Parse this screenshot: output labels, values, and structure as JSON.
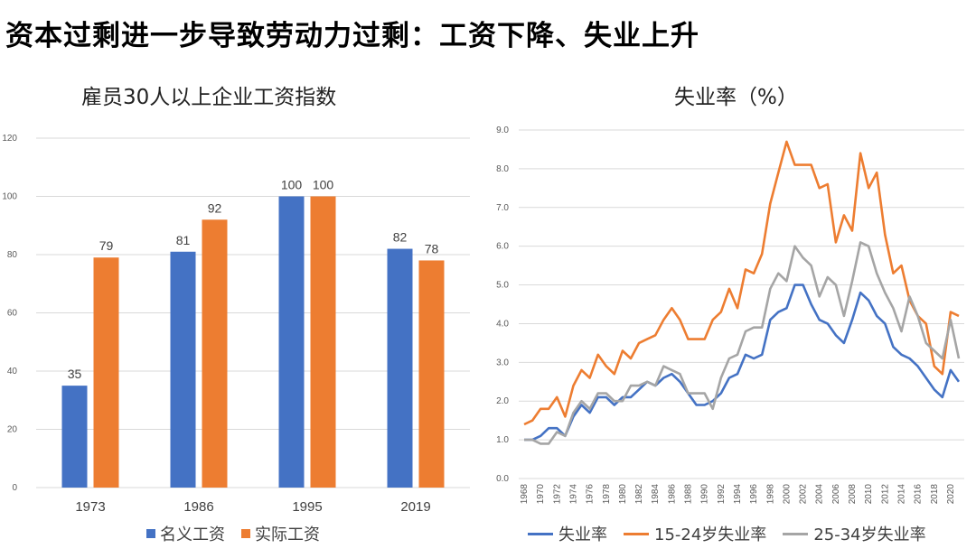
{
  "headline": "资本过剩进一步导致劳动力过剩：工资下降、失业上升",
  "chart_data": [
    {
      "type": "bar",
      "title": "雇员30人以上企业工资指数",
      "categories": [
        "1973",
        "1986",
        "1995",
        "2019"
      ],
      "series": [
        {
          "name": "名义工资",
          "color": "#4472C4",
          "values": [
            35,
            81,
            100,
            82
          ]
        },
        {
          "name": "实际工资",
          "color": "#ED7D31",
          "values": [
            79,
            92,
            100,
            78
          ]
        }
      ],
      "ylim": [
        0,
        120
      ],
      "yticks": [
        "0",
        "20",
        "40",
        "60",
        "80",
        "100",
        "120"
      ],
      "grid": true,
      "legend": "bottom"
    },
    {
      "type": "line",
      "title": "失业率（%）",
      "x": [
        1968,
        1969,
        1970,
        1971,
        1972,
        1973,
        1974,
        1975,
        1976,
        1977,
        1978,
        1979,
        1980,
        1981,
        1982,
        1983,
        1984,
        1985,
        1986,
        1987,
        1988,
        1989,
        1990,
        1991,
        1992,
        1993,
        1994,
        1995,
        1996,
        1997,
        1998,
        1999,
        2000,
        2001,
        2002,
        2003,
        2004,
        2005,
        2006,
        2007,
        2008,
        2009,
        2010,
        2011,
        2012,
        2013,
        2014,
        2015,
        2016,
        2017,
        2018,
        2019,
        2020,
        2021
      ],
      "xticks": [
        "1968",
        "1970",
        "1972",
        "1974",
        "1976",
        "1978",
        "1980",
        "1982",
        "1984",
        "1986",
        "1988",
        "1990",
        "1992",
        "1994",
        "1996",
        "1998",
        "2000",
        "2002",
        "2004",
        "2006",
        "2008",
        "2010",
        "2012",
        "2014",
        "2016",
        "2018",
        "2020"
      ],
      "series": [
        {
          "name": "失业率",
          "color": "#4472C4",
          "values": [
            1.0,
            1.0,
            1.1,
            1.3,
            1.3,
            1.1,
            1.6,
            1.9,
            1.7,
            2.1,
            2.1,
            1.9,
            2.1,
            2.1,
            2.3,
            2.5,
            2.4,
            2.6,
            2.7,
            2.5,
            2.2,
            1.9,
            1.9,
            2.0,
            2.2,
            2.6,
            2.7,
            3.2,
            3.1,
            3.2,
            4.1,
            4.3,
            4.4,
            5.0,
            5.0,
            4.5,
            4.1,
            4.0,
            3.7,
            3.5,
            4.1,
            4.8,
            4.6,
            4.2,
            4.0,
            3.4,
            3.2,
            3.1,
            2.9,
            2.6,
            2.3,
            2.1,
            2.8,
            2.5
          ]
        },
        {
          "name": "15-24岁失业率",
          "color": "#ED7D31",
          "values": [
            1.4,
            1.5,
            1.8,
            1.8,
            2.1,
            1.6,
            2.4,
            2.8,
            2.6,
            3.2,
            2.9,
            2.7,
            3.3,
            3.1,
            3.5,
            3.6,
            3.7,
            4.1,
            4.4,
            4.1,
            3.6,
            3.6,
            3.6,
            4.1,
            4.3,
            4.9,
            4.4,
            5.4,
            5.3,
            5.8,
            7.1,
            7.9,
            8.7,
            8.1,
            8.1,
            8.1,
            7.5,
            7.6,
            6.1,
            6.8,
            6.4,
            8.4,
            7.5,
            7.9,
            6.3,
            5.3,
            5.5,
            4.6,
            4.2,
            4.0,
            2.9,
            2.7,
            4.3,
            4.2
          ]
        },
        {
          "name": "25-34岁失业率",
          "color": "#A5A5A5",
          "values": [
            1.0,
            1.0,
            0.9,
            0.9,
            1.2,
            1.1,
            1.7,
            2.0,
            1.8,
            2.2,
            2.2,
            2.0,
            2.0,
            2.4,
            2.4,
            2.5,
            2.4,
            2.9,
            2.8,
            2.7,
            2.2,
            2.2,
            2.2,
            1.8,
            2.6,
            3.1,
            3.2,
            3.8,
            3.9,
            3.9,
            4.9,
            5.3,
            5.1,
            6.0,
            5.7,
            5.5,
            4.7,
            5.2,
            5.0,
            4.2,
            5.1,
            6.1,
            6.0,
            5.3,
            4.8,
            4.4,
            3.8,
            4.7,
            4.2,
            3.5,
            3.3,
            3.1,
            4.1,
            3.1
          ]
        }
      ],
      "ylim": [
        0,
        9
      ],
      "yticks": [
        "0.0",
        "1.0",
        "2.0",
        "3.0",
        "4.0",
        "5.0",
        "6.0",
        "7.0",
        "8.0",
        "9.0"
      ],
      "grid": true,
      "legend": "bottom"
    }
  ]
}
